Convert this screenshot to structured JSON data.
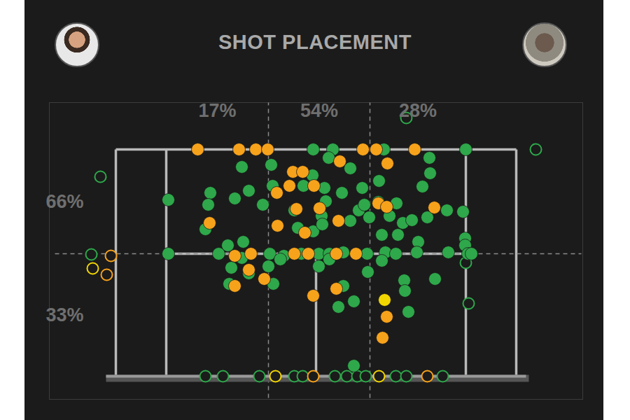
{
  "chart_data": {
    "type": "scatter",
    "title": "SHOT PLACEMENT",
    "xlim": [
      -95,
      667
    ],
    "ylim": [
      -33,
      391
    ],
    "grid": false,
    "tick_labels": false,
    "court": {
      "width": 572,
      "length": 324,
      "singles_inset": 72,
      "service_line": 175,
      "center": 286
    },
    "zones": {
      "x_dividers": [
        218,
        363
      ],
      "y_divider": 175,
      "x_values": [
        17,
        54,
        28
      ],
      "x_labels": [
        "17%",
        "54%",
        "28%"
      ],
      "y_values": [
        66,
        33
      ],
      "y_labels": [
        "66%",
        "33%"
      ]
    },
    "series": [
      {
        "color": "#2ea84a",
        "marker": "ring",
        "x": [
          -22,
          600,
          415,
          -35,
          500,
          504,
          128,
          153,
          205,
          255,
          267,
          313,
          330,
          345,
          357,
          400,
          415,
          467
        ],
        "y": [
          285,
          324,
          369,
          174,
          162,
          104,
          0,
          0,
          0,
          0,
          0,
          0,
          0,
          0,
          0,
          0,
          0,
          0
        ]
      },
      {
        "color": "#f7a21b",
        "marker": "ring",
        "x": [
          -7,
          -13,
          282,
          445
        ],
        "y": [
          172,
          145,
          0,
          0
        ]
      },
      {
        "color": "#f2d600",
        "marker": "ring",
        "x": [
          -33,
          228,
          376
        ],
        "y": [
          154,
          0,
          0
        ]
      },
      {
        "color": "#2ea84a",
        "marker": "circle",
        "x": [
          282,
          310,
          383,
          500,
          448,
          304,
          180,
          75,
          222,
          281,
          335,
          376,
          449,
          438,
          135,
          132,
          190,
          128,
          170,
          210,
          224,
          255,
          268,
          298,
          300,
          294,
          323,
          352,
          347,
          362,
          355,
          375,
          401,
          391,
          410,
          423,
          445,
          473,
          496,
          260,
          282,
          295,
          335,
          380,
          403,
          432,
          499,
          499,
          75,
          147,
          160,
          182,
          220,
          240,
          265,
          290,
          305,
          325,
          359,
          385,
          400,
          430,
          475,
          503,
          508,
          165,
          180,
          162,
          190,
          218,
          225,
          235,
          290,
          305,
          360,
          380,
          325,
          318,
          340,
          412,
          413,
          418,
          456,
          340
        ],
        "y": [
          324,
          324,
          324,
          324,
          312,
          312,
          299,
          252,
          302,
          287,
          297,
          279,
          290,
          271,
          262,
          245,
          265,
          210,
          254,
          245,
          272,
          237,
          272,
          269,
          250,
          229,
          262,
          269,
          237,
          227,
          245,
          249,
          247,
          229,
          219,
          223,
          227,
          237,
          235,
          212,
          207,
          217,
          222,
          202,
          202,
          192,
          197,
          187,
          175,
          175,
          187,
          192,
          175,
          172,
          175,
          175,
          175,
          177,
          175,
          177,
          175,
          177,
          177,
          175,
          175,
          155,
          169,
          132,
          147,
          157,
          132,
          167,
          157,
          167,
          149,
          165,
          129,
          99,
          107,
          137,
          122,
          92,
          139,
          15
        ]
      },
      {
        "color": "#f7a21b",
        "marker": "circle",
        "x": [
          117,
          176,
          200,
          217,
          353,
          372,
          427,
          388,
          320,
          253,
          267,
          248,
          283,
          230,
          258,
          291,
          318,
          231,
          134,
          270,
          375,
          387,
          455,
          170,
          193,
          255,
          275,
          315,
          343,
          190,
          212,
          170,
          315,
          282,
          387,
          381
        ],
        "y": [
          324,
          324,
          324,
          324,
          324,
          324,
          324,
          304,
          307,
          292,
          292,
          272,
          272,
          262,
          239,
          240,
          222,
          215,
          219,
          205,
          247,
          242,
          241,
          172,
          175,
          175,
          175,
          175,
          175,
          152,
          139,
          129,
          125,
          115,
          85,
          55
        ]
      },
      {
        "color": "#f2d600",
        "marker": "circle",
        "x": [
          384
        ],
        "y": [
          109
        ]
      }
    ]
  }
}
